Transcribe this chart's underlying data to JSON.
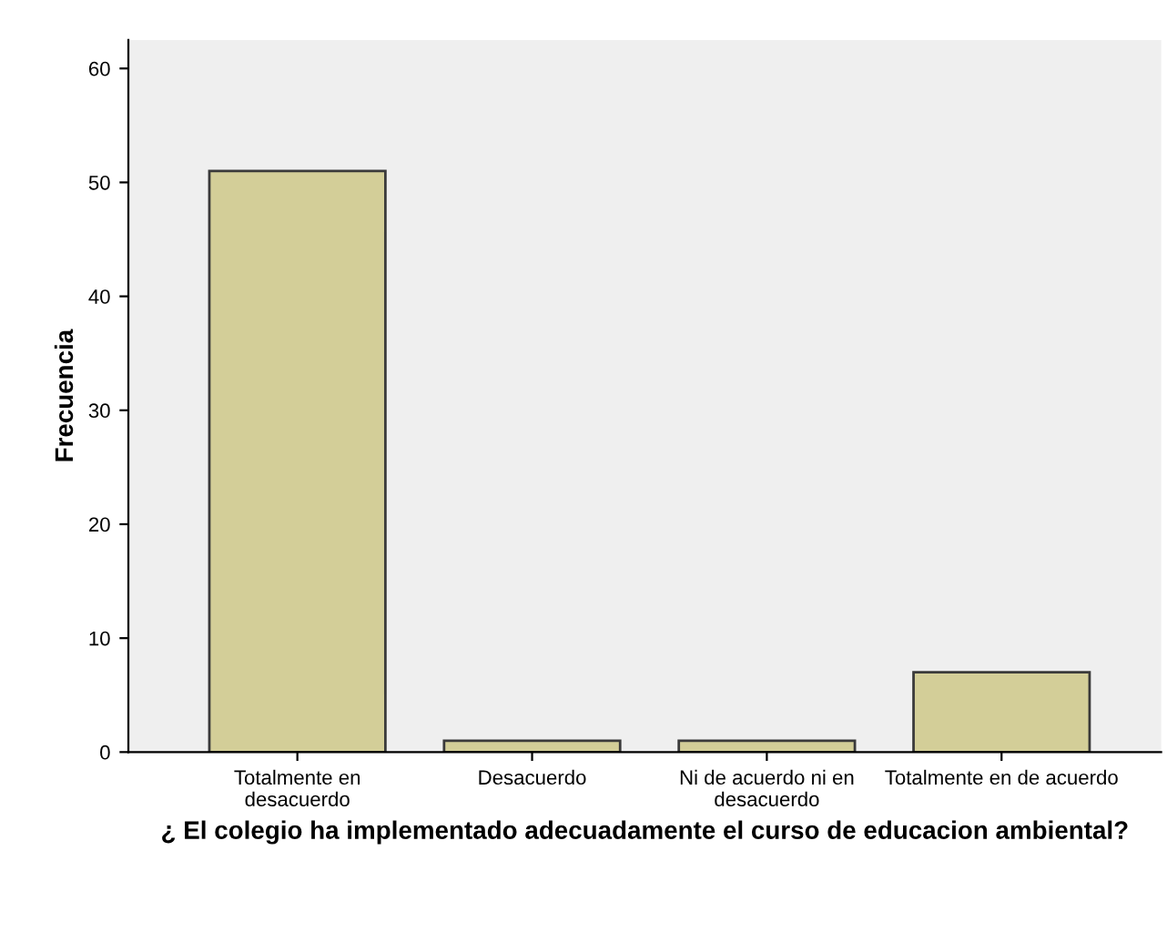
{
  "chart_data": {
    "type": "bar",
    "xlabel": "¿ El colegio ha implementado adecuadamente el curso de educacion ambiental?",
    "ylabel": "Frecuencia",
    "categories": [
      "Totalmente en\ndesacuerdo",
      "Desacuerdo",
      "Ni de acuerdo ni en\ndesacuerdo",
      "Totalmente en de acuerdo"
    ],
    "values": [
      51,
      1,
      1,
      7
    ],
    "color": "#d3ce98",
    "ylim": [
      0,
      62.5
    ],
    "yticks": [
      0,
      10,
      20,
      30,
      40,
      50,
      60
    ],
    "grid": false
  }
}
